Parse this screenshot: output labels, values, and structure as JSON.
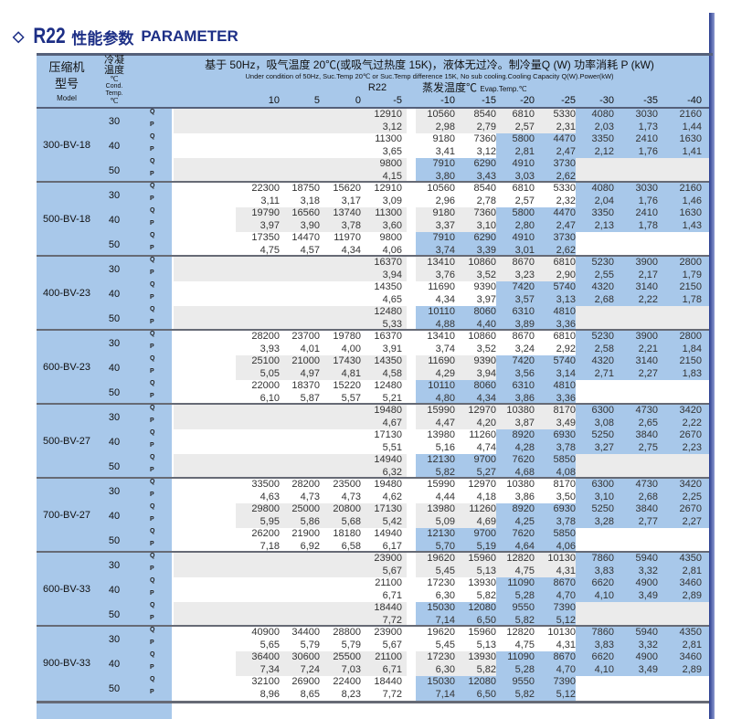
{
  "title": {
    "icon": "diamond-outline-icon",
    "refrigerant": "R22",
    "cn": "性能参数",
    "en": "PARAMETER"
  },
  "colors": {
    "title": "#1d2f86",
    "header_bg": "#a8c8ea",
    "highlight": "#a8c8ea",
    "shade": "#ebebeb"
  },
  "header": {
    "model_cn1": "压缩机",
    "model_cn2": "型号",
    "model_en": "Model",
    "cond_cn1": "冷凝",
    "cond_cn2": "温度",
    "cond_unit": "℃",
    "cond_en1": "Cond.",
    "cond_en2": "Temp.",
    "cond_unit2": "℃",
    "condition_cn": "基于 50Hz，吸气温度 20℃(或吸气过热度 15K)，液体无过冷。制冷量Q (W)  功率消耗 P (kW)",
    "condition_en": "Under condition of 50Hz, Suc.Temp 20℃ or Suc.Temp difference 15K, No sub cooling.Cooling Capacity Q(W).Power(kW)",
    "refrigerant": "R22",
    "evap_cn": "蒸发温度℃",
    "evap_en": "Evap.Temp.℃",
    "evap_temps": [
      "10",
      "5",
      "0",
      "-5",
      "-10",
      "-15",
      "-20",
      "-25",
      "-30",
      "-35",
      "-40"
    ]
  },
  "row_labels": {
    "q": "Q",
    "p": "P"
  },
  "models": [
    {
      "name": "300-BV-18",
      "rows": [
        {
          "cond": "30",
          "Q": [
            "",
            "",
            "",
            "12910",
            "10560",
            "8540",
            "6810",
            "5330",
            "4080",
            "3030",
            "2160"
          ],
          "P": [
            "",
            "",
            "",
            "3,12",
            "2,98",
            "2,79",
            "2,57",
            "2,31",
            "2,03",
            "1,73",
            "1,44"
          ]
        },
        {
          "cond": "40",
          "Q": [
            "",
            "",
            "",
            "11300",
            "9180",
            "7360",
            "5800",
            "4470",
            "3350",
            "2410",
            "1630"
          ],
          "P": [
            "",
            "",
            "",
            "3,65",
            "3,41",
            "3,12",
            "2,81",
            "2,47",
            "2,12",
            "1,76",
            "1,41"
          ]
        },
        {
          "cond": "50",
          "Q": [
            "",
            "",
            "",
            "9800",
            "7910",
            "6290",
            "4910",
            "3730",
            "",
            "",
            ""
          ],
          "P": [
            "",
            "",
            "",
            "4,15",
            "3,80",
            "3,43",
            "3,03",
            "2,62",
            "",
            "",
            ""
          ]
        }
      ]
    },
    {
      "name": "500-BV-18",
      "rows": [
        {
          "cond": "30",
          "Q": [
            "22300",
            "18750",
            "15620",
            "12910",
            "10560",
            "8540",
            "6810",
            "5330",
            "4080",
            "3030",
            "2160"
          ],
          "P": [
            "3,11",
            "3,18",
            "3,17",
            "3,09",
            "2,96",
            "2,78",
            "2,57",
            "2,32",
            "2,04",
            "1,76",
            "1,46"
          ]
        },
        {
          "cond": "40",
          "Q": [
            "19790",
            "16560",
            "13740",
            "11300",
            "9180",
            "7360",
            "5800",
            "4470",
            "3350",
            "2410",
            "1630"
          ],
          "P": [
            "3,97",
            "3,90",
            "3,78",
            "3,60",
            "3,37",
            "3,10",
            "2,80",
            "2,47",
            "2,13",
            "1,78",
            "1,43"
          ]
        },
        {
          "cond": "50",
          "Q": [
            "17350",
            "14470",
            "11970",
            "9800",
            "7910",
            "6290",
            "4910",
            "3730",
            "",
            "",
            ""
          ],
          "P": [
            "4,75",
            "4,57",
            "4,34",
            "4,06",
            "3,74",
            "3,39",
            "3,01",
            "2,62",
            "",
            "",
            ""
          ]
        }
      ]
    },
    {
      "name": "400-BV-23",
      "rows": [
        {
          "cond": "30",
          "Q": [
            "",
            "",
            "",
            "16370",
            "13410",
            "10860",
            "8670",
            "6810",
            "5230",
            "3900",
            "2800"
          ],
          "P": [
            "",
            "",
            "",
            "3,94",
            "3,76",
            "3,52",
            "3,23",
            "2,90",
            "2,55",
            "2,17",
            "1,79"
          ]
        },
        {
          "cond": "40",
          "Q": [
            "",
            "",
            "",
            "14350",
            "11690",
            "9390",
            "7420",
            "5740",
            "4320",
            "3140",
            "2150"
          ],
          "P": [
            "",
            "",
            "",
            "4,65",
            "4,34",
            "3,97",
            "3,57",
            "3,13",
            "2,68",
            "2,22",
            "1,78"
          ]
        },
        {
          "cond": "50",
          "Q": [
            "",
            "",
            "",
            "12480",
            "10110",
            "8060",
            "6310",
            "4810",
            "",
            "",
            ""
          ],
          "P": [
            "",
            "",
            "",
            "5,33",
            "4,88",
            "4,40",
            "3,89",
            "3,36",
            "",
            "",
            ""
          ]
        }
      ]
    },
    {
      "name": "600-BV-23",
      "rows": [
        {
          "cond": "30",
          "Q": [
            "28200",
            "23700",
            "19780",
            "16370",
            "13410",
            "10860",
            "8670",
            "6810",
            "5230",
            "3900",
            "2800"
          ],
          "P": [
            "3,93",
            "4,01",
            "4,00",
            "3,91",
            "3,74",
            "3,52",
            "3,24",
            "2,92",
            "2,58",
            "2,21",
            "1,84"
          ]
        },
        {
          "cond": "40",
          "Q": [
            "25100",
            "21000",
            "17430",
            "14350",
            "11690",
            "9390",
            "7420",
            "5740",
            "4320",
            "3140",
            "2150"
          ],
          "P": [
            "5,05",
            "4,97",
            "4,81",
            "4,58",
            "4,29",
            "3,94",
            "3,56",
            "3,14",
            "2,71",
            "2,27",
            "1,83"
          ]
        },
        {
          "cond": "50",
          "Q": [
            "22000",
            "18370",
            "15220",
            "12480",
            "10110",
            "8060",
            "6310",
            "4810",
            "",
            "",
            ""
          ],
          "P": [
            "6,10",
            "5,87",
            "5,57",
            "5,21",
            "4,80",
            "4,34",
            "3,86",
            "3,36",
            "",
            "",
            ""
          ]
        }
      ]
    },
    {
      "name": "500-BV-27",
      "rows": [
        {
          "cond": "30",
          "Q": [
            "",
            "",
            "",
            "19480",
            "15990",
            "12970",
            "10380",
            "8170",
            "6300",
            "4730",
            "3420"
          ],
          "P": [
            "",
            "",
            "",
            "4,67",
            "4,47",
            "4,20",
            "3,87",
            "3,49",
            "3,08",
            "2,65",
            "2,22"
          ]
        },
        {
          "cond": "40",
          "Q": [
            "",
            "",
            "",
            "17130",
            "13980",
            "11260",
            "8920",
            "6930",
            "5250",
            "3840",
            "2670"
          ],
          "P": [
            "",
            "",
            "",
            "5,51",
            "5,16",
            "4,74",
            "4,28",
            "3,78",
            "3,27",
            "2,75",
            "2,23"
          ]
        },
        {
          "cond": "50",
          "Q": [
            "",
            "",
            "",
            "14940",
            "12130",
            "9700",
            "7620",
            "5850",
            "",
            "",
            ""
          ],
          "P": [
            "",
            "",
            "",
            "6,32",
            "5,82",
            "5,27",
            "4,68",
            "4,08",
            "",
            "",
            ""
          ]
        }
      ]
    },
    {
      "name": "700-BV-27",
      "rows": [
        {
          "cond": "30",
          "Q": [
            "33500",
            "28200",
            "23500",
            "19480",
            "15990",
            "12970",
            "10380",
            "8170",
            "6300",
            "4730",
            "3420"
          ],
          "P": [
            "4,63",
            "4,73",
            "4,73",
            "4,62",
            "4,44",
            "4,18",
            "3,86",
            "3,50",
            "3,10",
            "2,68",
            "2,25"
          ]
        },
        {
          "cond": "40",
          "Q": [
            "29800",
            "25000",
            "20800",
            "17130",
            "13980",
            "11260",
            "8920",
            "6930",
            "5250",
            "3840",
            "2670"
          ],
          "P": [
            "5,95",
            "5,86",
            "5,68",
            "5,42",
            "5,09",
            "4,69",
            "4,25",
            "3,78",
            "3,28",
            "2,77",
            "2,27"
          ]
        },
        {
          "cond": "50",
          "Q": [
            "26200",
            "21900",
            "18180",
            "14940",
            "12130",
            "9700",
            "7620",
            "5850",
            "",
            "",
            ""
          ],
          "P": [
            "7,18",
            "6,92",
            "6,58",
            "6,17",
            "5,70",
            "5,19",
            "4,64",
            "4,06",
            "",
            "",
            ""
          ]
        }
      ]
    },
    {
      "name": "600-BV-33",
      "rows": [
        {
          "cond": "30",
          "Q": [
            "",
            "",
            "",
            "23900",
            "19620",
            "15960",
            "12820",
            "10130",
            "7860",
            "5940",
            "4350"
          ],
          "P": [
            "",
            "",
            "",
            "5,67",
            "5,45",
            "5,13",
            "4,75",
            "4,31",
            "3,83",
            "3,32",
            "2,81"
          ]
        },
        {
          "cond": "40",
          "Q": [
            "",
            "",
            "",
            "21100",
            "17230",
            "13930",
            "11090",
            "8670",
            "6620",
            "4900",
            "3460"
          ],
          "P": [
            "",
            "",
            "",
            "6,71",
            "6,30",
            "5,82",
            "5,28",
            "4,70",
            "4,10",
            "3,49",
            "2,89"
          ]
        },
        {
          "cond": "50",
          "Q": [
            "",
            "",
            "",
            "18440",
            "15030",
            "12080",
            "9550",
            "7390",
            "",
            "",
            ""
          ],
          "P": [
            "",
            "",
            "",
            "7,72",
            "7,14",
            "6,50",
            "5,82",
            "5,12",
            "",
            "",
            ""
          ]
        }
      ]
    },
    {
      "name": "900-BV-33",
      "rows": [
        {
          "cond": "30",
          "Q": [
            "40900",
            "34400",
            "28800",
            "23900",
            "19620",
            "15960",
            "12820",
            "10130",
            "7860",
            "5940",
            "4350"
          ],
          "P": [
            "5,65",
            "5,79",
            "5,79",
            "5,67",
            "5,45",
            "5,13",
            "4,75",
            "4,31",
            "3,83",
            "3,32",
            "2,81"
          ]
        },
        {
          "cond": "40",
          "Q": [
            "36400",
            "30600",
            "25500",
            "21100",
            "17230",
            "13930",
            "11090",
            "8670",
            "6620",
            "4900",
            "3460"
          ],
          "P": [
            "7,34",
            "7,24",
            "7,03",
            "6,71",
            "6,30",
            "5,82",
            "5,28",
            "4,70",
            "4,10",
            "3,49",
            "2,89"
          ]
        },
        {
          "cond": "50",
          "Q": [
            "32100",
            "26900",
            "22400",
            "18440",
            "15030",
            "12080",
            "9550",
            "7390",
            "",
            "",
            ""
          ],
          "P": [
            "8,96",
            "8,65",
            "8,23",
            "7,72",
            "7,14",
            "6,50",
            "5,82",
            "5,12",
            "",
            "",
            ""
          ]
        }
      ]
    }
  ]
}
